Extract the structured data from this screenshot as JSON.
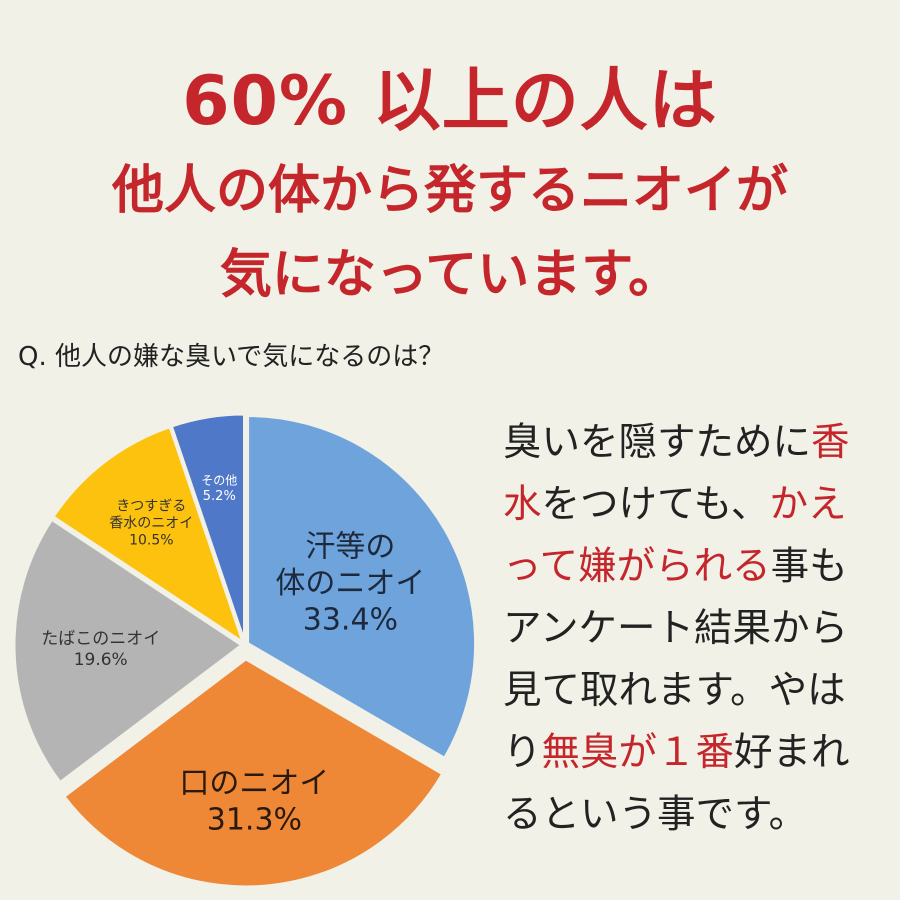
{
  "headline": {
    "line1": "60% 以上の人は",
    "line2": "他人の体から発するニオイが",
    "line3": "気になっています。"
  },
  "question": "Q. 他人の嫌な臭いで気になるのは？",
  "chart_data": {
    "type": "pie",
    "title": "",
    "slices": [
      {
        "label_lines": [
          "汗等の",
          "体のニオイ"
        ],
        "value": 33.4,
        "value_label": "33.4%",
        "color": "#6fa3dc"
      },
      {
        "label_lines": [
          "口のニオイ"
        ],
        "value": 31.3,
        "value_label": "31.3%",
        "color": "#ee8837"
      },
      {
        "label_lines": [
          "たばこのニオイ"
        ],
        "value": 19.6,
        "value_label": "19.6%",
        "color": "#b4b4b4"
      },
      {
        "label_lines": [
          "きつすぎる",
          "香水のニオイ"
        ],
        "value": 10.5,
        "value_label": "10.5%",
        "color": "#fcc20e"
      },
      {
        "label_lines": [
          "その他"
        ],
        "value": 5.2,
        "value_label": "5.2%",
        "color": "#4f79c8"
      }
    ]
  },
  "note": {
    "segments": [
      {
        "text": "臭いを隠すために",
        "highlight": false
      },
      {
        "text": "香水",
        "highlight": true
      },
      {
        "text": "をつけても、",
        "highlight": false
      },
      {
        "text": "かえって嫌がられる",
        "highlight": true
      },
      {
        "text": "事もアンケート結果から見て取れます。やはり",
        "highlight": false
      },
      {
        "text": "無臭が１番",
        "highlight": true
      },
      {
        "text": "好まれるという事です。",
        "highlight": false
      }
    ]
  },
  "colors": {
    "accent_red": "#c4262b",
    "background": "#f1f1e7"
  }
}
